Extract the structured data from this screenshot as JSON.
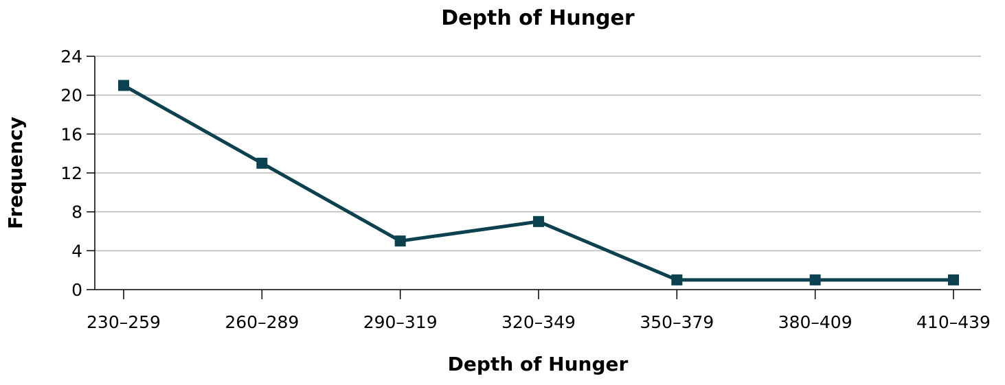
{
  "chart_data": {
    "type": "line",
    "title": "Depth of Hunger",
    "xlabel": "Depth of Hunger",
    "ylabel": "Frequency",
    "categories": [
      "230–259",
      "260–289",
      "290–319",
      "320–349",
      "350–379",
      "380–409",
      "410–439"
    ],
    "series": [
      {
        "values": [
          21,
          13,
          5,
          7,
          1,
          1,
          1
        ]
      }
    ],
    "ylim": [
      0,
      24
    ],
    "yticks": [
      0,
      4,
      8,
      12,
      16,
      20,
      24
    ],
    "grid": true,
    "marker": "square",
    "colors": {
      "line": "#0c4150",
      "grid": "#b8b8b8",
      "axis": "#000000"
    }
  }
}
